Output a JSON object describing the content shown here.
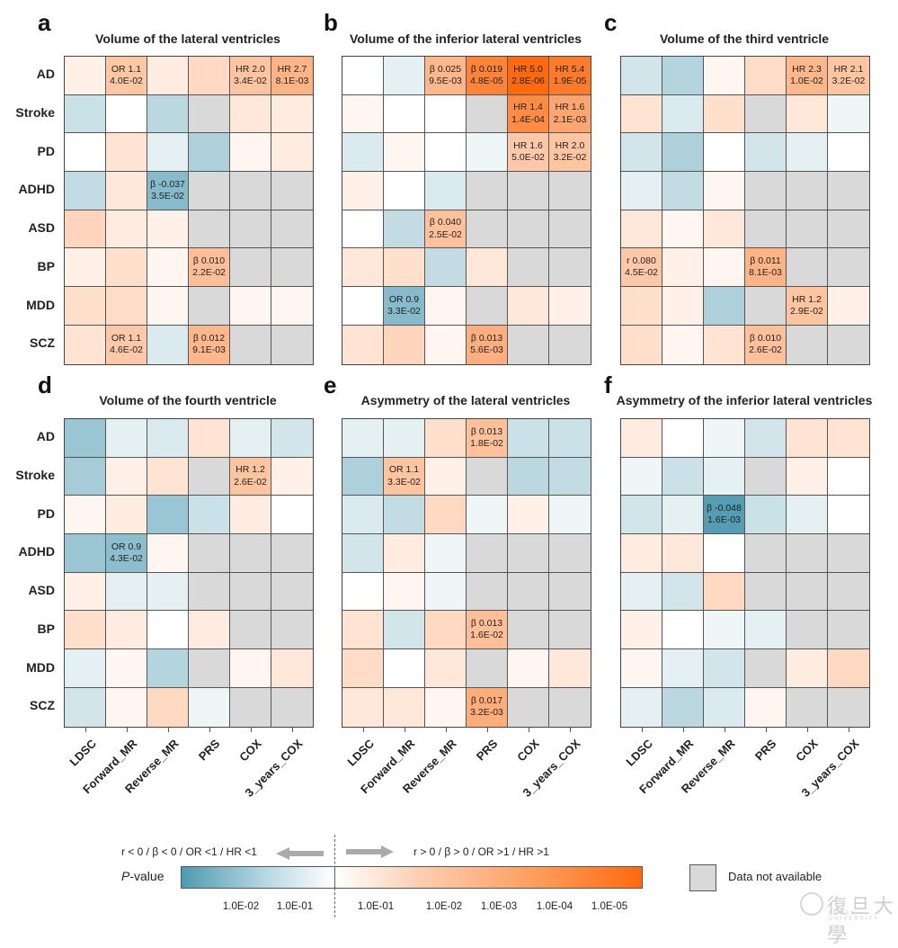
{
  "chart_data": {
    "type": "heatmap",
    "rows": [
      "AD",
      "Stroke",
      "PD",
      "ADHD",
      "ASD",
      "BP",
      "MDD",
      "SCZ"
    ],
    "columns": [
      "LDSC",
      "Forward_MR",
      "Reverse_MR",
      "PRS",
      "COX",
      "3_years_COX"
    ],
    "value_encoding": "signed significance level: sign = direction (negative = r<0/β<0/OR<1/HR<1, positive = r>0/β>0/OR>1/HR>1), magnitude ≈ -log10(P) estimated from color; null = data not available",
    "panels": [
      {
        "letter": "a",
        "title": "Volume of the lateral ventricles",
        "values": [
          [
            0.2,
            1.4,
            0.3,
            0.8,
            1.5,
            2.1
          ],
          [
            -0.5,
            0.0,
            -0.7,
            null,
            0.4,
            0.3
          ],
          [
            0.0,
            0.5,
            -0.2,
            -0.9,
            0.1,
            0.3
          ],
          [
            -0.6,
            0.4,
            -1.5,
            null,
            null,
            null
          ],
          [
            0.9,
            0.3,
            0.2,
            null,
            null,
            null
          ],
          [
            0.2,
            0.6,
            0.1,
            1.7,
            null,
            null
          ],
          [
            0.6,
            0.7,
            0.1,
            null,
            0.1,
            0.1
          ],
          [
            0.5,
            1.3,
            -0.3,
            2.0,
            null,
            null
          ]
        ],
        "annotations": [
          {
            "row": "AD",
            "col": "Forward_MR",
            "text": "OR 1.1\n4.0E-02"
          },
          {
            "row": "AD",
            "col": "COX",
            "text": "HR 2.0\n3.4E-02"
          },
          {
            "row": "AD",
            "col": "3_years_COX",
            "text": "HR 2.7\n8.1E-03"
          },
          {
            "row": "ADHD",
            "col": "Reverse_MR",
            "text": "β -0.037\n3.5E-02"
          },
          {
            "row": "BP",
            "col": "PRS",
            "text": "β 0.010\n2.2E-02"
          },
          {
            "row": "SCZ",
            "col": "Forward_MR",
            "text": "OR 1.1\n4.6E-02"
          },
          {
            "row": "SCZ",
            "col": "PRS",
            "text": "β 0.012\n9.1E-03"
          }
        ]
      },
      {
        "letter": "b",
        "title": "Volume of the inferior lateral ventricles",
        "values": [
          [
            0.0,
            -0.2,
            2.0,
            4.3,
            5.6,
            4.7
          ],
          [
            0.1,
            0.0,
            0.0,
            null,
            3.9,
            2.7
          ],
          [
            -0.3,
            0.1,
            0.0,
            -0.1,
            1.3,
            1.5
          ],
          [
            0.2,
            0.0,
            -0.3,
            null,
            null,
            null
          ],
          [
            0.0,
            -0.6,
            1.6,
            null,
            null,
            null
          ],
          [
            0.4,
            0.6,
            -0.6,
            0.4,
            null,
            null
          ],
          [
            0.0,
            -1.5,
            0.1,
            null,
            0.4,
            0.2
          ],
          [
            0.5,
            0.9,
            0.1,
            2.3,
            null,
            null
          ]
        ],
        "annotations": [
          {
            "row": "AD",
            "col": "Reverse_MR",
            "text": "β 0.025\n9.5E-03"
          },
          {
            "row": "AD",
            "col": "PRS",
            "text": "β 0.019\n4.8E-05"
          },
          {
            "row": "AD",
            "col": "COX",
            "text": "HR 5.0\n2.8E-06"
          },
          {
            "row": "AD",
            "col": "3_years_COX",
            "text": "HR 5.4\n1.9E-05"
          },
          {
            "row": "Stroke",
            "col": "COX",
            "text": "HR 1.4\n1.4E-04"
          },
          {
            "row": "Stroke",
            "col": "3_years_COX",
            "text": "HR 1.6\n2.1E-03"
          },
          {
            "row": "PD",
            "col": "COX",
            "text": "HR 1.6\n5.0E-02"
          },
          {
            "row": "PD",
            "col": "3_years_COX",
            "text": "HR 2.0\n3.2E-02"
          },
          {
            "row": "ASD",
            "col": "Reverse_MR",
            "text": "β 0.040\n2.5E-02"
          },
          {
            "row": "MDD",
            "col": "Forward_MR",
            "text": "OR 0.9\n3.3E-02"
          },
          {
            "row": "SCZ",
            "col": "PRS",
            "text": "β 0.013\n5.6E-03"
          }
        ]
      },
      {
        "letter": "c",
        "title": "Volume of the third ventricle",
        "values": [
          [
            -0.4,
            -0.8,
            0.1,
            0.7,
            2.0,
            1.5
          ],
          [
            0.5,
            -0.3,
            0.6,
            null,
            0.4,
            -0.1
          ],
          [
            -0.4,
            -0.9,
            0.0,
            -0.4,
            -0.2,
            0.0
          ],
          [
            -0.2,
            -0.6,
            0.1,
            null,
            null,
            null
          ],
          [
            0.4,
            0.1,
            0.4,
            null,
            null,
            null
          ],
          [
            1.3,
            0.2,
            0.1,
            2.1,
            null,
            null
          ],
          [
            0.6,
            0.2,
            -0.9,
            null,
            1.5,
            0.2
          ],
          [
            0.6,
            0.1,
            0.5,
            1.6,
            null,
            null
          ]
        ],
        "annotations": [
          {
            "row": "AD",
            "col": "COX",
            "text": "HR 2.3\n1.0E-02"
          },
          {
            "row": "AD",
            "col": "3_years_COX",
            "text": "HR 2.1\n3.2E-02"
          },
          {
            "row": "BP",
            "col": "LDSC",
            "text": "r 0.080\n4.5E-02"
          },
          {
            "row": "BP",
            "col": "PRS",
            "text": "β 0.011\n8.1E-03"
          },
          {
            "row": "MDD",
            "col": "COX",
            "text": "HR 1.2\n2.9E-02"
          },
          {
            "row": "SCZ",
            "col": "PRS",
            "text": "β 0.010\n2.6E-02"
          }
        ]
      },
      {
        "letter": "d",
        "title": "Volume of the fourth ventricle",
        "values": [
          [
            -1.2,
            -0.2,
            -0.3,
            0.5,
            -0.2,
            -0.4
          ],
          [
            -1.0,
            0.2,
            0.5,
            null,
            1.5,
            0.2
          ],
          [
            0.1,
            0.3,
            -1.2,
            -0.5,
            0.3,
            0.0
          ],
          [
            -1.2,
            -1.4,
            0.1,
            null,
            null,
            null
          ],
          [
            0.2,
            -0.2,
            -0.2,
            null,
            null,
            null
          ],
          [
            0.6,
            0.3,
            0.0,
            0.3,
            null,
            null
          ],
          [
            -0.2,
            0.1,
            -0.8,
            null,
            0.1,
            0.4
          ],
          [
            -0.4,
            0.1,
            0.8,
            -0.1,
            null,
            null
          ]
        ],
        "annotations": [
          {
            "row": "Stroke",
            "col": "COX",
            "text": "HR 1.2\n2.6E-02"
          },
          {
            "row": "ADHD",
            "col": "Forward_MR",
            "text": "OR 0.9\n4.3E-02"
          }
        ]
      },
      {
        "letter": "e",
        "title": "Asymmetry of the lateral ventricles",
        "values": [
          [
            -0.2,
            -0.2,
            0.6,
            1.6,
            -0.5,
            -0.5
          ],
          [
            -0.9,
            1.5,
            0.2,
            null,
            -0.7,
            -0.6
          ],
          [
            -0.3,
            -0.6,
            0.8,
            -0.1,
            0.2,
            -0.1
          ],
          [
            -0.4,
            0.3,
            -0.1,
            null,
            null,
            null
          ],
          [
            0.0,
            0.1,
            -0.1,
            null,
            null,
            null
          ],
          [
            0.5,
            -0.4,
            0.8,
            1.7,
            null,
            null
          ],
          [
            0.7,
            0.0,
            0.4,
            null,
            0.1,
            0.4
          ],
          [
            0.4,
            0.4,
            0.1,
            2.4,
            null,
            null
          ]
        ],
        "annotations": [
          {
            "row": "AD",
            "col": "PRS",
            "text": "β 0.013\n1.8E-02"
          },
          {
            "row": "Stroke",
            "col": "Forward_MR",
            "text": "OR 1.1\n3.3E-02"
          },
          {
            "row": "BP",
            "col": "PRS",
            "text": "β 0.013\n1.6E-02"
          },
          {
            "row": "SCZ",
            "col": "PRS",
            "text": "β 0.017\n3.2E-03"
          }
        ]
      },
      {
        "letter": "f",
        "title": "Asymmetry of the inferior lateral ventricles",
        "values": [
          [
            0.3,
            0.0,
            -0.1,
            -0.4,
            0.5,
            0.5
          ],
          [
            -0.1,
            -0.5,
            -0.2,
            null,
            0.2,
            0.0
          ],
          [
            -0.4,
            -0.2,
            -2.4,
            -0.5,
            -0.2,
            0.0
          ],
          [
            0.3,
            0.4,
            0.0,
            null,
            null,
            null
          ],
          [
            -0.2,
            -0.4,
            0.8,
            null,
            null,
            null
          ],
          [
            0.2,
            0.0,
            -0.1,
            -0.2,
            null,
            null
          ],
          [
            0.1,
            -0.2,
            -0.4,
            null,
            0.3,
            0.8
          ],
          [
            -0.2,
            -0.7,
            -0.3,
            0.1,
            null,
            null
          ]
        ],
        "annotations": [
          {
            "row": "PD",
            "col": "Reverse_MR",
            "text": "β -0.048\n1.6E-03"
          }
        ]
      }
    ],
    "legend": {
      "negative_label": "r < 0 / β < 0 / OR <1 / HR <1",
      "positive_label": "r > 0 / β > 0 / OR >1 / HR >1",
      "pvalue_label_italic": "P",
      "pvalue_label_rest": "-value",
      "negative_ticks": [
        "1.0E-02",
        "1.0E-01"
      ],
      "positive_ticks": [
        "1.0E-01",
        "1.0E-02",
        "1.0E-03",
        "1.0E-04",
        "1.0E-05"
      ],
      "na_label": "Data not available",
      "colors": {
        "negative_max": "#4f9ab1",
        "neutral": "#ffffff",
        "positive_max": "#ff6a10",
        "not_available": "#d9d9d9",
        "grid_line": "#555555"
      }
    }
  },
  "watermark": {
    "text": "復旦大學",
    "subtext": "FUDAN UNIVERSITY"
  }
}
